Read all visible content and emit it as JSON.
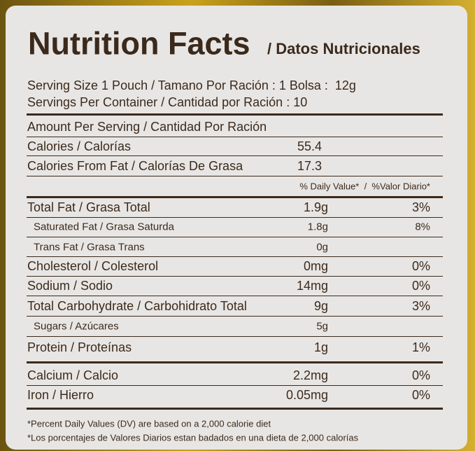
{
  "header": {
    "title": "Nutrition Facts",
    "subtitle": "/ Datos Nutricionales"
  },
  "serving": [
    "Serving Size 1 Pouch / Tamano Por Ración : 1 Bolsa :  12g",
    "Servings Per Container / Cantidad por Ración : 10"
  ],
  "amount_per_serving": "Amount Per Serving / Cantidad Por Ración",
  "calories": [
    {
      "label": "Calories / Calorías",
      "value": "55.4"
    },
    {
      "label": "Calories From Fat / Calorías De Grasa",
      "value": "17.3"
    }
  ],
  "dv_header": "% Daily Value*  /  %Valor Diario*",
  "nutrients": [
    {
      "label": "Total Fat / Grasa Total",
      "amount": "1.9g",
      "dv": "3%"
    },
    {
      "label": "Saturated Fat / Grasa Saturda",
      "amount": "1.8g",
      "dv": "8%"
    },
    {
      "label": "Trans Fat / Grasa Trans",
      "amount": "0g"
    },
    {
      "label": "Cholesterol / Colesterol",
      "amount": "0mg",
      "dv": "0%"
    },
    {
      "label": "Sodium / Sodio",
      "amount": "14mg",
      "dv": "0%"
    },
    {
      "label": "Total Carbohydrate / Carbohidrato Total",
      "amount": "9g",
      "dv": "3%"
    },
    {
      "label": "Sugars / Azúcares",
      "amount": "5g"
    },
    {
      "label": "Protein / Proteínas",
      "amount": "1g",
      "dv": "1%"
    }
  ],
  "vitamins": [
    {
      "label": "Calcium / Calcio",
      "amount": "2.2mg",
      "dv": "0%"
    },
    {
      "label": "Iron / Hierro",
      "amount": "0.05mg",
      "dv": "0%"
    }
  ],
  "footnotes": [
    "*Percent Daily Values (DV) are based on a 2,000 calorie diet",
    "*Los porcentajes de Valores Diarios estan badados en una dieta de 2,000 calorías"
  ]
}
